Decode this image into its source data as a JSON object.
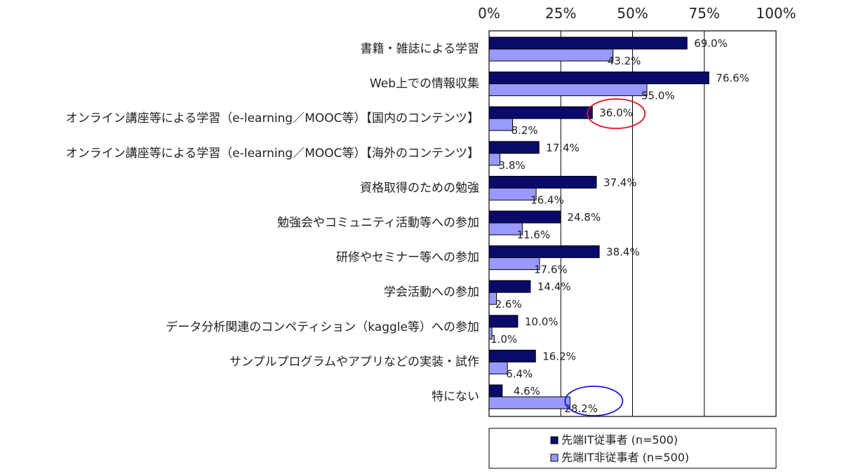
{
  "chart_data": {
    "type": "bar",
    "orientation": "horizontal",
    "categories": [
      "書籍・雑誌による学習",
      "Web上での情報収集",
      "オンライン講座等による学習（e-learning／MOOC等）【国内のコンテンツ】",
      "オンライン講座等による学習（e-learning／MOOC等）【海外のコンテンツ】",
      "資格取得のための勉強",
      "勉強会やコミュニティ活動等への参加",
      "研修やセミナー等への参加",
      "学会活動への参加",
      "データ分析関連のコンペティション（kaggle等）への参加",
      "サンプルプログラムやアプリなどの実装・試作",
      "特にない"
    ],
    "series": [
      {
        "name": "先端IT従事者 (n=500)",
        "values": [
          69.0,
          76.6,
          36.0,
          17.4,
          37.4,
          24.8,
          38.4,
          14.4,
          10.0,
          16.2,
          4.6
        ],
        "labels": [
          "69.0%",
          "76.6%",
          "36.0%",
          "17.4%",
          "37.4%",
          "24.8%",
          "38.4%",
          "14.4%",
          "10.0%",
          "16.2%",
          "4.6%"
        ]
      },
      {
        "name": "先端IT非従事者 (n=500)",
        "values": [
          43.2,
          55.0,
          8.2,
          3.8,
          16.4,
          11.6,
          17.6,
          2.6,
          1.0,
          6.4,
          28.2
        ],
        "labels": [
          "43.2%",
          "55.0%",
          "8.2%",
          "3.8%",
          "16.4%",
          "11.6%",
          "17.6%",
          "2.6%",
          "1.0%",
          "6.4%",
          "28.2%"
        ]
      }
    ],
    "x_ticks": [
      "0%",
      "25%",
      "50%",
      "75%",
      "100%"
    ],
    "xlim": [
      0,
      100
    ],
    "grid": true,
    "legend": "bottom",
    "colors": {
      "series1": "#0a0a6b",
      "series2": "#9999ff"
    },
    "highlights": [
      {
        "series": 0,
        "category": 2,
        "color": "#e0141e"
      },
      {
        "series": 1,
        "category": 10,
        "color": "#1a1ae0"
      }
    ]
  }
}
